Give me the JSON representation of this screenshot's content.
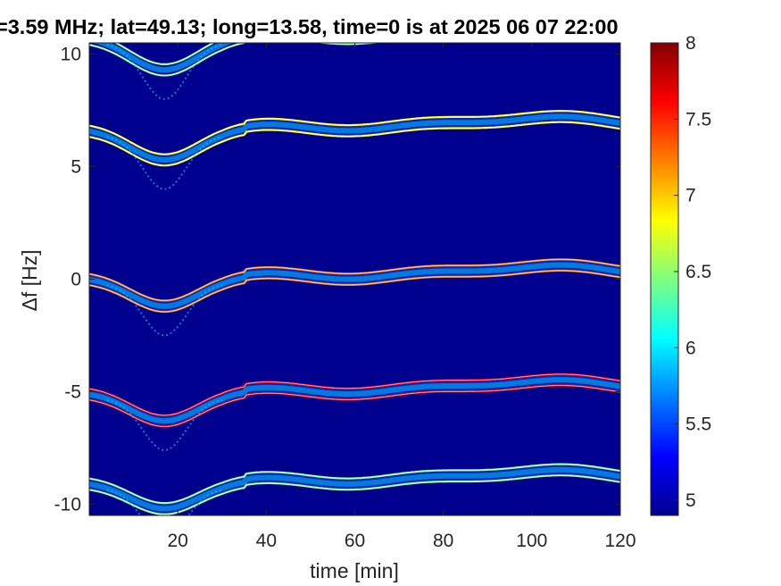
{
  "chart_data": {
    "type": "heatmap",
    "title": "=3.59 MHz;  lat=49.13; long=13.58, time=0 is at 2025 06 07 22:00",
    "xlabel": "time [min]",
    "ylabel": "Δf [Hz]",
    "xlim": [
      0,
      120
    ],
    "ylim": [
      -10.5,
      10.5
    ],
    "x_ticks": [
      20,
      40,
      60,
      80,
      100,
      120
    ],
    "x_tick_labels": [
      "20",
      "40",
      "60",
      "80",
      "100",
      "120"
    ],
    "y_ticks": [
      10,
      5,
      0,
      -5,
      -10
    ],
    "y_tick_labels": [
      "10",
      "5",
      "0",
      "-5",
      "-10"
    ],
    "colorbar": {
      "colormap": "jet",
      "clim": [
        4.9,
        8
      ],
      "ticks": [
        8,
        7.5,
        7,
        6.5,
        6,
        5.5,
        5
      ],
      "tick_labels": [
        "8",
        "7.5",
        "7",
        "6.5",
        "6",
        "5.5",
        "5"
      ]
    },
    "background_color": "#00008f",
    "traces": [
      {
        "name": "",
        "baseline_hz": 10.7,
        "dip_min_hz": 9.2,
        "dip_center_min": 17,
        "strength": 0.55
      },
      {
        "name": "",
        "baseline_hz": 6.6,
        "dip_min_hz": 5.2,
        "dip_center_min": 17,
        "strength": 0.9
      },
      {
        "name": "",
        "baseline_hz": 0.0,
        "dip_min_hz": -1.3,
        "dip_center_min": 17,
        "strength": 0.95
      },
      {
        "name": "",
        "baseline_hz": -5.1,
        "dip_min_hz": -6.4,
        "dip_center_min": 17,
        "strength": 1.0
      },
      {
        "name": "",
        "baseline_hz": -9.1,
        "dip_min_hz": -10.3,
        "dip_center_min": 17,
        "strength": 0.9
      }
    ]
  }
}
